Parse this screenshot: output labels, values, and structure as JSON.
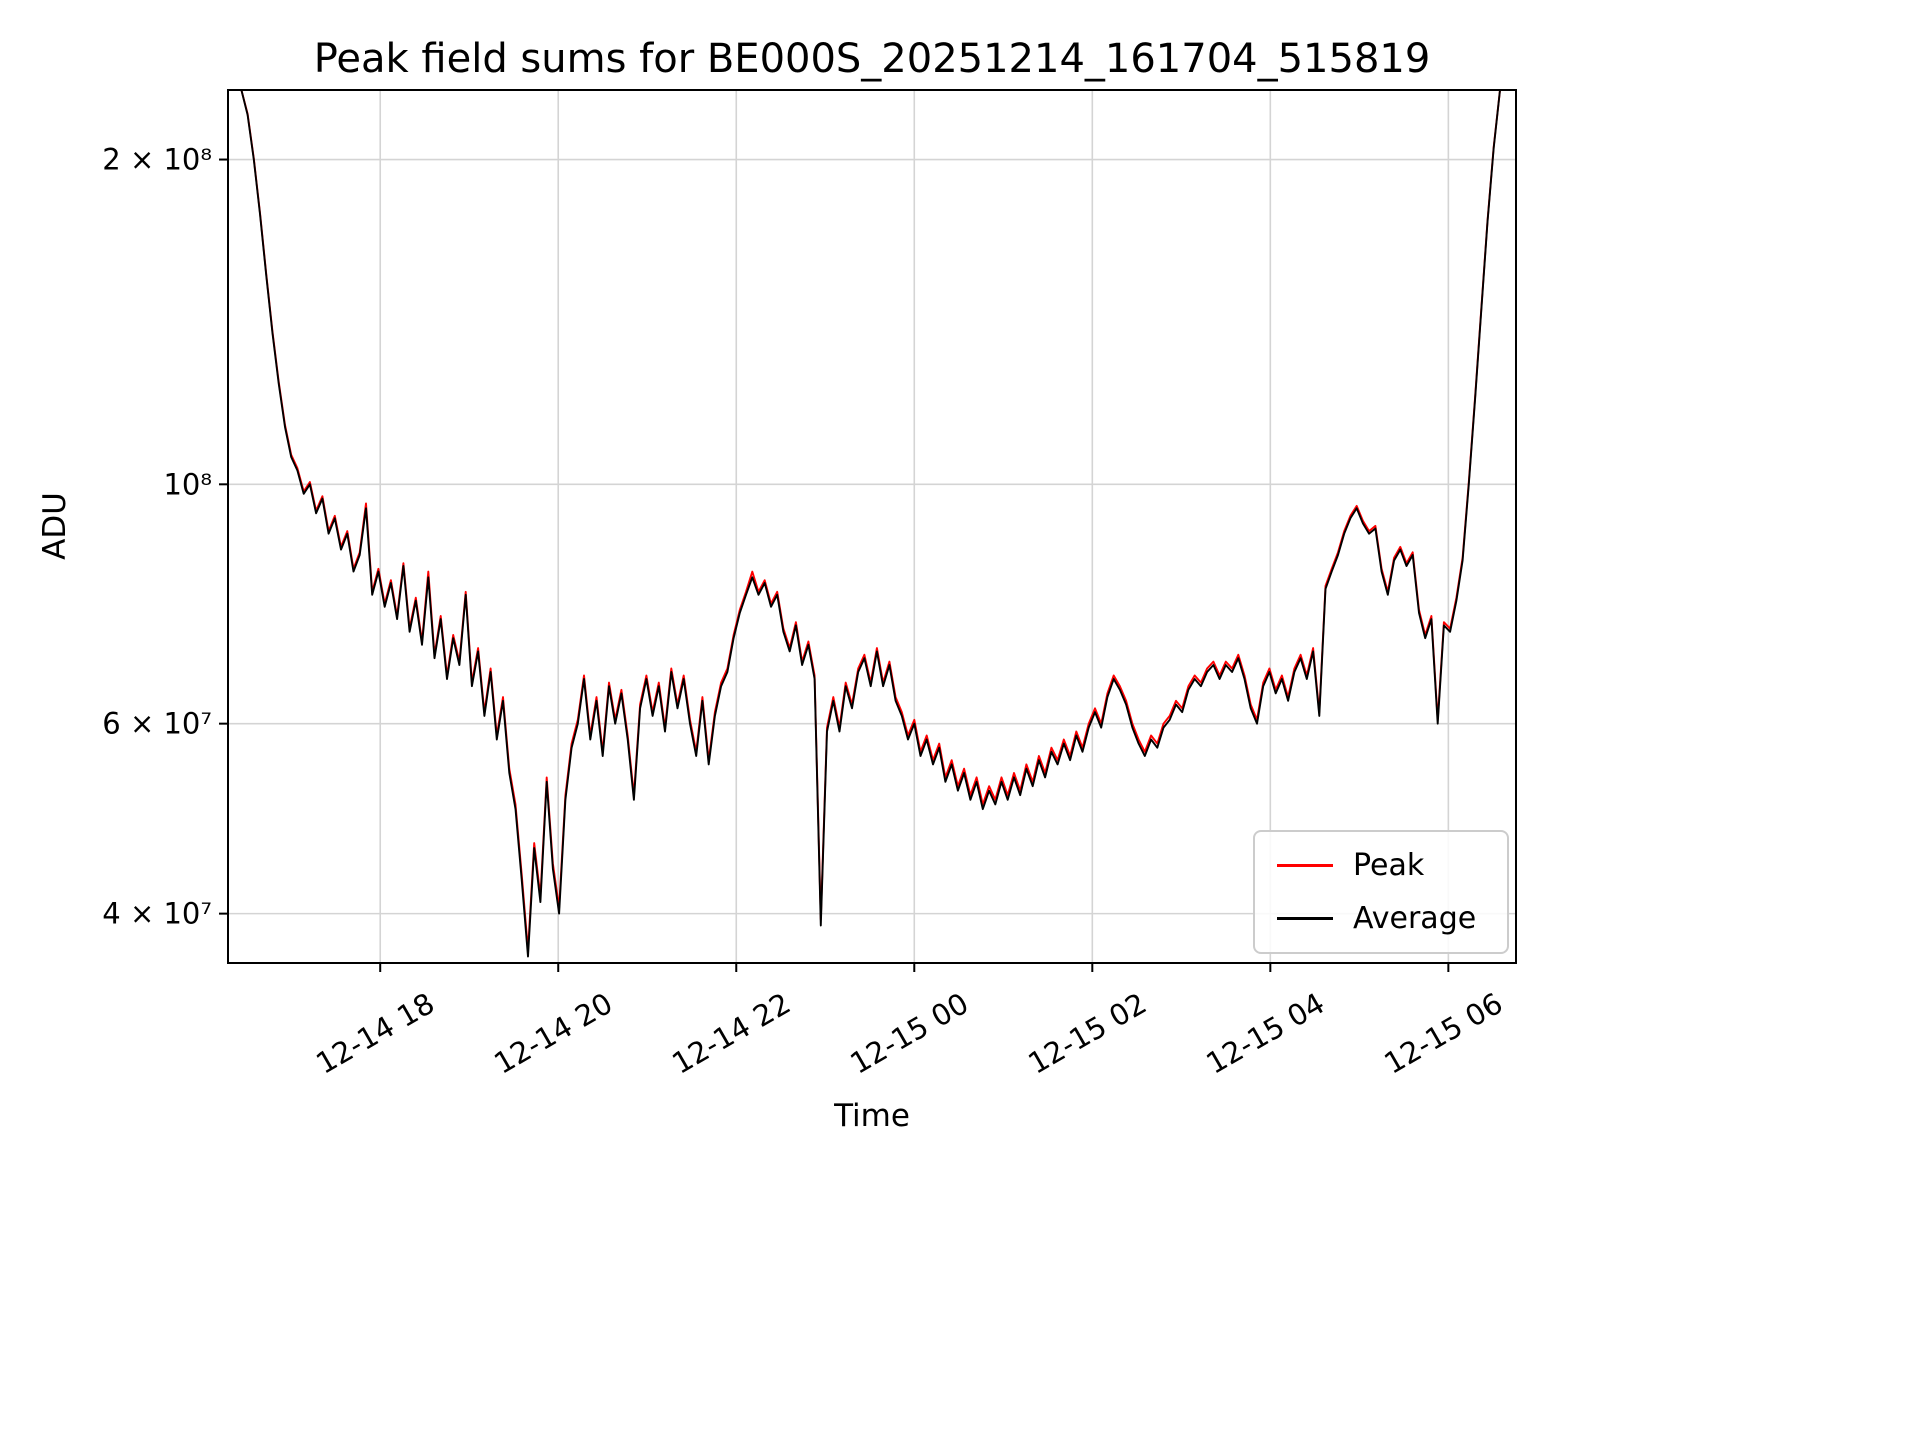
{
  "chart_data": {
    "type": "line",
    "title": "Peak field sums for BE000S_20251214_161704_515819",
    "xlabel": "Time",
    "ylabel": "ADU",
    "grid": true,
    "grid_color": "#d4d4d4",
    "x_axis": {
      "range_hours": [
        16.29,
        30.76
      ],
      "tick_hours": [
        18,
        20,
        22,
        24,
        26,
        28,
        30
      ],
      "tick_labels": [
        "12-14 18",
        "12-14 20",
        "12-14 22",
        "12-15 00",
        "12-15 02",
        "12-15 04",
        "12-15 06"
      ]
    },
    "y_axis": {
      "scale": "log",
      "range": [
        36000000.0,
        232000000.0
      ],
      "tick_values": [
        40000000.0,
        60000000.0,
        100000000.0,
        200000000.0
      ],
      "tick_labels": [
        "4 × 10⁷",
        "6 × 10⁷",
        "10⁸",
        "2 × 10⁸"
      ]
    },
    "legend": {
      "position": "lower right",
      "entries": [
        {
          "label": "Peak",
          "color": "#ff0000"
        },
        {
          "label": "Average",
          "color": "#000000"
        }
      ]
    },
    "t_start_hours": 16.3,
    "t_step_hours": 0.07,
    "y_unit": 10000000.0,
    "series": [
      {
        "name": "Peak",
        "color": "#ff0000",
        "values": [
          23.2,
          23.2,
          23.2,
          22.05,
          20.05,
          17.85,
          15.65,
          13.85,
          12.45,
          11.35,
          10.65,
          10.35,
          9.85,
          10.05,
          9.45,
          9.75,
          9.05,
          9.35,
          8.75,
          9.05,
          8.35,
          8.65,
          9.6,
          7.95,
          8.35,
          7.75,
          8.15,
          7.55,
          8.45,
          7.35,
          7.85,
          7.15,
          8.3,
          6.95,
          7.55,
          6.65,
          7.25,
          6.85,
          7.95,
          6.55,
          7.05,
          6.15,
          6.75,
          5.85,
          6.35,
          5.45,
          5.05,
          4.35,
          3.7,
          4.65,
          4.15,
          5.35,
          4.45,
          4.05,
          5.15,
          5.75,
          6.05,
          6.65,
          5.85,
          6.35,
          5.65,
          6.55,
          6.05,
          6.45,
          5.85,
          5.15,
          6.25,
          6.65,
          6.15,
          6.55,
          5.95,
          6.75,
          6.25,
          6.65,
          6.05,
          5.65,
          6.35,
          5.55,
          6.15,
          6.55,
          6.75,
          7.25,
          7.65,
          7.95,
          8.3,
          7.95,
          8.15,
          7.75,
          7.95,
          7.35,
          7.05,
          7.45,
          6.85,
          7.15,
          6.65,
          3.95,
          5.95,
          6.35,
          5.95,
          6.55,
          6.25,
          6.75,
          6.95,
          6.55,
          7.05,
          6.55,
          6.85,
          6.35,
          6.15,
          5.85,
          6.05,
          5.65,
          5.85,
          5.55,
          5.75,
          5.35,
          5.55,
          5.25,
          5.45,
          5.15,
          5.35,
          5.05,
          5.25,
          5.1,
          5.35,
          5.15,
          5.4,
          5.2,
          5.5,
          5.3,
          5.6,
          5.4,
          5.7,
          5.55,
          5.8,
          5.6,
          5.9,
          5.7,
          6.0,
          6.2,
          6.0,
          6.4,
          6.65,
          6.5,
          6.3,
          6.0,
          5.8,
          5.65,
          5.85,
          5.75,
          6.0,
          6.1,
          6.3,
          6.2,
          6.5,
          6.65,
          6.55,
          6.75,
          6.85,
          6.65,
          6.85,
          6.75,
          6.95,
          6.65,
          6.25,
          6.05,
          6.55,
          6.75,
          6.45,
          6.65,
          6.35,
          6.75,
          6.95,
          6.65,
          7.05,
          6.15,
          8.05,
          8.35,
          8.65,
          9.05,
          9.35,
          9.55,
          9.25,
          9.05,
          9.15,
          8.35,
          7.95,
          8.55,
          8.75,
          8.45,
          8.65,
          7.65,
          7.25,
          7.55,
          6.05,
          7.45,
          7.35,
          7.85,
          8.55,
          10.05,
          12.05,
          14.55,
          17.55,
          20.55,
          23.2,
          23.2,
          23.2
        ]
      },
      {
        "name": "Average",
        "color": "#000000",
        "values": [
          23.2,
          23.2,
          23.2,
          22.0,
          20.0,
          17.8,
          15.6,
          13.8,
          12.4,
          11.3,
          10.6,
          10.3,
          9.8,
          10.0,
          9.4,
          9.7,
          9.0,
          9.3,
          8.7,
          9.0,
          8.3,
          8.6,
          9.5,
          7.9,
          8.3,
          7.7,
          8.1,
          7.5,
          8.4,
          7.3,
          7.8,
          7.1,
          8.2,
          6.9,
          7.5,
          6.6,
          7.2,
          6.8,
          7.9,
          6.5,
          7.0,
          6.1,
          6.7,
          5.8,
          6.3,
          5.4,
          5.0,
          4.3,
          3.65,
          4.6,
          4.1,
          5.3,
          4.4,
          4.0,
          5.1,
          5.7,
          6.0,
          6.6,
          5.8,
          6.3,
          5.6,
          6.5,
          6.0,
          6.4,
          5.8,
          5.1,
          6.2,
          6.6,
          6.1,
          6.5,
          5.9,
          6.7,
          6.2,
          6.6,
          6.0,
          5.6,
          6.3,
          5.5,
          6.1,
          6.5,
          6.7,
          7.2,
          7.6,
          7.9,
          8.2,
          7.9,
          8.1,
          7.7,
          7.9,
          7.3,
          7.0,
          7.4,
          6.8,
          7.1,
          6.6,
          3.9,
          5.9,
          6.3,
          5.9,
          6.5,
          6.2,
          6.7,
          6.9,
          6.5,
          7.0,
          6.5,
          6.8,
          6.3,
          6.1,
          5.8,
          6.0,
          5.6,
          5.8,
          5.5,
          5.7,
          5.3,
          5.5,
          5.2,
          5.4,
          5.1,
          5.3,
          5.0,
          5.2,
          5.05,
          5.3,
          5.1,
          5.35,
          5.15,
          5.45,
          5.25,
          5.55,
          5.35,
          5.65,
          5.5,
          5.75,
          5.55,
          5.85,
          5.65,
          5.95,
          6.15,
          5.95,
          6.35,
          6.6,
          6.45,
          6.25,
          5.95,
          5.75,
          5.6,
          5.8,
          5.7,
          5.95,
          6.05,
          6.25,
          6.15,
          6.45,
          6.6,
          6.5,
          6.7,
          6.8,
          6.6,
          6.8,
          6.7,
          6.9,
          6.6,
          6.2,
          6.0,
          6.5,
          6.7,
          6.4,
          6.6,
          6.3,
          6.7,
          6.9,
          6.6,
          7.0,
          6.1,
          8.0,
          8.3,
          8.6,
          9.0,
          9.3,
          9.5,
          9.2,
          9.0,
          9.1,
          8.3,
          7.9,
          8.5,
          8.7,
          8.4,
          8.6,
          7.6,
          7.2,
          7.5,
          6.0,
          7.4,
          7.3,
          7.8,
          8.5,
          10.0,
          12.0,
          14.5,
          17.5,
          20.5,
          23.2,
          23.2,
          23.2
        ]
      }
    ]
  }
}
